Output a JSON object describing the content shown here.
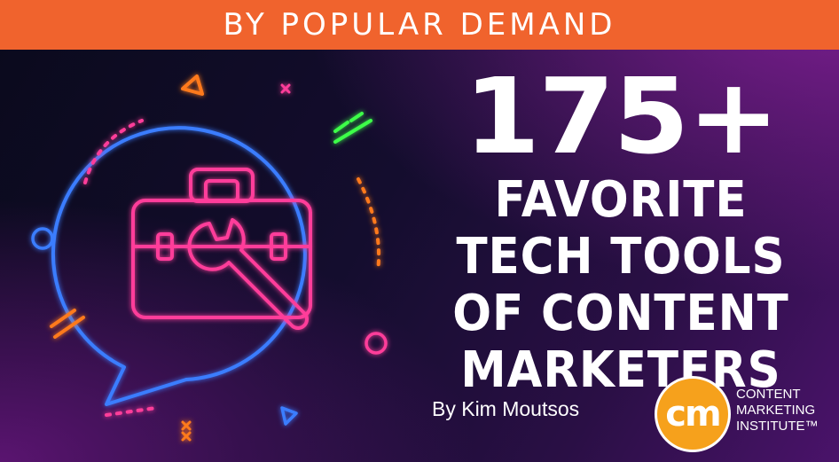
{
  "banner": {
    "text": "BY POPULAR DEMAND"
  },
  "headline": {
    "number": "175+",
    "lines": [
      "FAVORITE",
      "TECH TOOLS",
      "OF CONTENT",
      "MARKETERS"
    ]
  },
  "byline": "By Kim Moutsos",
  "logo": {
    "mark": "cm",
    "lines": [
      "CONTENT",
      "MARKETING",
      "INSTITUTE™"
    ]
  },
  "colors": {
    "banner": "#f0632d",
    "neon_blue": "#3a7dff",
    "neon_pink": "#ff3e9a",
    "neon_orange": "#ff7a1a",
    "neon_green": "#3cff4a",
    "logo_orange": "#f6a11c"
  },
  "icons": [
    "toolbox-icon",
    "wrench-icon",
    "speech-bubble-icon"
  ]
}
